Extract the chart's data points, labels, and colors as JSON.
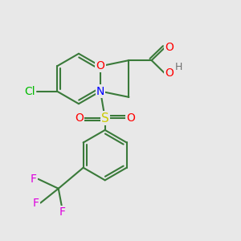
{
  "bg_color": "#e8e8e8",
  "bond_color": "#3a7a3a",
  "atom_colors": {
    "O": "#ff0000",
    "N": "#0000ff",
    "S": "#cccc00",
    "Cl": "#00bb00",
    "F": "#dd00dd",
    "H": "#707070",
    "C": "#3a7a3a"
  },
  "figsize": [
    3.0,
    3.0
  ],
  "dpi": 100
}
